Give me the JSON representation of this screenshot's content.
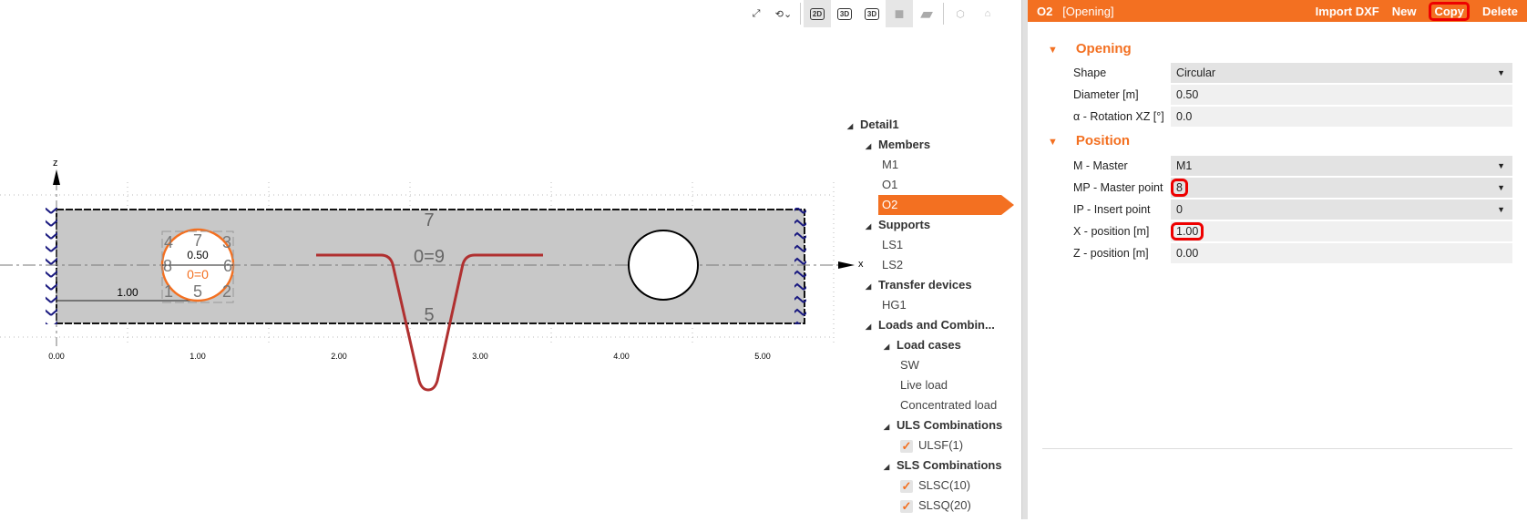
{
  "toolbar": {
    "items": [
      "fit-icon",
      "rotate-icon",
      "view-2d",
      "view-3d",
      "view-3d-plus",
      "solid-icon",
      "box-icon",
      "wireframe-icon",
      "home-icon"
    ],
    "labels": {
      "v2d": "2D",
      "v3d": "3D",
      "v3dp": "3D"
    }
  },
  "canvas": {
    "axis_z": "z",
    "axis_x": "x",
    "ticks": [
      "0.00",
      "1.00",
      "2.00",
      "3.00",
      "4.00",
      "5.00"
    ],
    "dim_position": "1.00",
    "dim_diameter": "0.50",
    "opening_points": [
      "4",
      "7",
      "3",
      "8",
      "6",
      "1",
      "5",
      "2"
    ],
    "opening_origin_label": "0=0",
    "member_points": {
      "top": "7",
      "center": "0=9",
      "bottom": "5"
    },
    "colors": {
      "member": "#c8c8c8",
      "selected": "#f37021",
      "curve": "#b03030",
      "support": "#1a1a80"
    }
  },
  "tree": {
    "root": "Detail1",
    "groups": [
      {
        "label": "Members",
        "items": [
          "M1",
          "O1",
          "O2"
        ]
      },
      {
        "label": "Supports",
        "items": [
          "LS1",
          "LS2"
        ]
      },
      {
        "label": "Transfer devices",
        "items": [
          "HG1"
        ]
      },
      {
        "label": "Loads and Combin...",
        "sub": [
          {
            "label": "Load cases",
            "items": [
              "SW",
              "Live load",
              "Concentrated load"
            ]
          },
          {
            "label": "ULS Combinations",
            "items": [
              "ULSF(1)"
            ]
          },
          {
            "label": "SLS Combinations",
            "items": [
              "SLSC(10)",
              "SLSQ(20)"
            ]
          }
        ]
      }
    ],
    "selected": "O2"
  },
  "panel": {
    "header": {
      "title": "O2",
      "type": "[Opening]",
      "import": "Import DXF",
      "new": "New",
      "copy": "Copy",
      "delete": "Delete"
    },
    "opening": {
      "title": "Opening",
      "shape_label": "Shape",
      "shape": "Circular",
      "diameter_label": "Diameter [m]",
      "diameter": "0.50",
      "rotation_label": "α - Rotation XZ [°]",
      "rotation": "0.0"
    },
    "position": {
      "title": "Position",
      "master_label": "M - Master",
      "master": "M1",
      "mp_label": "MP - Master point",
      "mp": "8",
      "ip_label": "IP - Insert point",
      "ip": "0",
      "x_label": "X - position [m]",
      "x": "1.00",
      "z_label": "Z - position [m]",
      "z": "0.00"
    }
  },
  "accent": "#f37021"
}
